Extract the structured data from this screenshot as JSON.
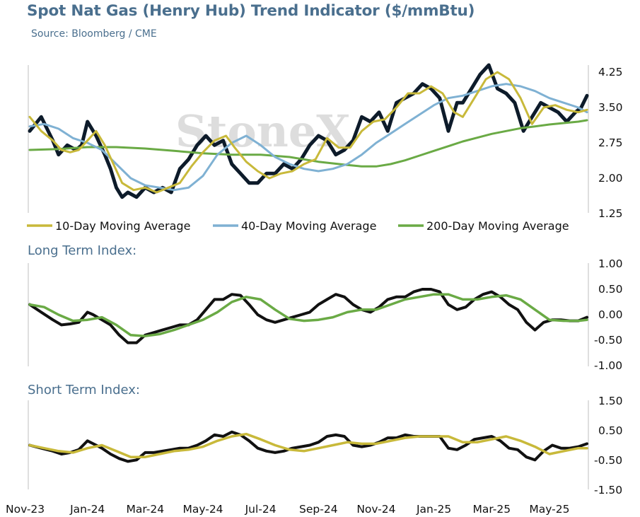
{
  "title": "Spot Nat Gas (Henry Hub) Trend Indicator ($/mmBtu)",
  "subtitle": "Source: Bloomberg / CME",
  "watermark": "StoneX",
  "colors": {
    "spot": "#0d1b2a",
    "ma10": "#c8b93a",
    "ma40": "#7fb1d3",
    "ma200": "#6aaa45",
    "index_long": "#111111",
    "index_long_avg": "#6aaa45",
    "index_short_avg": "#c8b93a",
    "axis": "#bfbfbf",
    "title": "#4a6f8e"
  },
  "chart_data": [
    {
      "type": "line",
      "title": "Spot Nat Gas (Henry Hub) Trend Indicator ($/mmBtu)",
      "ylim": [
        1.25,
        4.25
      ],
      "yticks": [
        "4.25",
        "3.50",
        "2.75",
        "2.00",
        "1.25"
      ],
      "x_labels": [
        "Nov-23",
        "Jan-24",
        "Mar-24",
        "May-24",
        "Jul-24",
        "Sep-24",
        "Nov-24",
        "Jan-25",
        "Mar-25",
        "May-25"
      ],
      "x_months": [
        0,
        2,
        4,
        6,
        8,
        10,
        12,
        14,
        16,
        18
      ],
      "x_range_months": [
        0,
        19.3
      ],
      "legend": [
        "10-Day Moving Average",
        "40-Day Moving Average",
        "200-Day Moving Average"
      ],
      "series": [
        {
          "key": "spot",
          "x": [
            0,
            0.4,
            0.8,
            1.0,
            1.3,
            1.6,
            1.8,
            2.0,
            2.3,
            2.6,
            2.8,
            3.0,
            3.2,
            3.4,
            3.7,
            4.0,
            4.3,
            4.6,
            4.9,
            5.2,
            5.5,
            5.8,
            6.1,
            6.4,
            6.7,
            7.0,
            7.3,
            7.6,
            7.9,
            8.2,
            8.5,
            8.8,
            9.1,
            9.4,
            9.7,
            10.0,
            10.3,
            10.6,
            10.9,
            11.2,
            11.5,
            11.8,
            12.1,
            12.4,
            12.7,
            13.0,
            13.3,
            13.6,
            13.9,
            14.2,
            14.5,
            14.8,
            15.0,
            15.3,
            15.6,
            15.9,
            16.2,
            16.5,
            16.8,
            17.1,
            17.4,
            17.7,
            18.0,
            18.3,
            18.6,
            18.9,
            19.1,
            19.3
          ],
          "values": [
            3.0,
            3.3,
            2.8,
            2.5,
            2.7,
            2.6,
            2.7,
            3.2,
            2.9,
            2.5,
            2.2,
            1.8,
            1.6,
            1.7,
            1.6,
            1.8,
            1.7,
            1.8,
            1.7,
            2.2,
            2.4,
            2.7,
            2.9,
            2.7,
            2.8,
            2.3,
            2.1,
            1.9,
            1.9,
            2.1,
            2.1,
            2.3,
            2.2,
            2.4,
            2.7,
            2.9,
            2.8,
            2.5,
            2.6,
            2.8,
            3.3,
            3.2,
            3.4,
            3.0,
            3.6,
            3.7,
            3.8,
            4.0,
            3.9,
            3.7,
            3.0,
            3.6,
            3.6,
            3.9,
            4.2,
            4.4,
            3.9,
            3.8,
            3.6,
            3.0,
            3.3,
            3.6,
            3.5,
            3.4,
            3.2,
            3.4,
            3.5,
            3.75
          ]
        },
        {
          "key": "ma10",
          "x": [
            0,
            0.4,
            0.8,
            1.1,
            1.4,
            1.7,
            2.0,
            2.3,
            2.6,
            2.9,
            3.2,
            3.6,
            4.0,
            4.4,
            4.8,
            5.2,
            5.6,
            6.0,
            6.4,
            6.8,
            7.1,
            7.5,
            7.9,
            8.3,
            8.7,
            9.1,
            9.5,
            9.9,
            10.3,
            10.7,
            11.1,
            11.5,
            11.9,
            12.3,
            12.7,
            13.1,
            13.5,
            13.9,
            14.3,
            14.7,
            15.0,
            15.4,
            15.8,
            16.2,
            16.6,
            17.0,
            17.4,
            17.8,
            18.2,
            18.6,
            19.0,
            19.3
          ],
          "values": [
            3.3,
            3.0,
            2.8,
            2.6,
            2.55,
            2.6,
            2.8,
            3.0,
            2.7,
            2.3,
            1.9,
            1.75,
            1.8,
            1.7,
            1.8,
            1.9,
            2.25,
            2.55,
            2.8,
            2.9,
            2.65,
            2.35,
            2.15,
            2.0,
            2.1,
            2.15,
            2.3,
            2.4,
            2.85,
            2.65,
            2.65,
            3.0,
            3.2,
            3.25,
            3.5,
            3.8,
            3.8,
            3.95,
            3.8,
            3.4,
            3.3,
            3.7,
            4.1,
            4.25,
            4.1,
            3.7,
            3.15,
            3.5,
            3.55,
            3.45,
            3.4,
            3.45
          ]
        },
        {
          "key": "ma40",
          "x": [
            0,
            0.5,
            1.0,
            1.5,
            2.0,
            2.5,
            3.0,
            3.5,
            4.0,
            4.5,
            5.0,
            5.5,
            6.0,
            6.5,
            7.0,
            7.5,
            8.0,
            8.5,
            9.0,
            9.5,
            10.0,
            10.5,
            11.0,
            11.5,
            12.0,
            12.5,
            13.0,
            13.5,
            14.0,
            14.5,
            15.0,
            15.5,
            16.0,
            16.5,
            17.0,
            17.5,
            18.0,
            18.5,
            19.0,
            19.3
          ],
          "values": [
            3.1,
            3.15,
            3.05,
            2.85,
            2.75,
            2.6,
            2.3,
            2.0,
            1.85,
            1.8,
            1.75,
            1.8,
            2.05,
            2.5,
            2.75,
            2.9,
            2.7,
            2.45,
            2.3,
            2.2,
            2.15,
            2.2,
            2.3,
            2.5,
            2.75,
            2.95,
            3.15,
            3.35,
            3.55,
            3.7,
            3.75,
            3.85,
            3.95,
            4.0,
            3.95,
            3.85,
            3.7,
            3.6,
            3.5,
            3.4
          ]
        },
        {
          "key": "ma200",
          "x": [
            0,
            1,
            2,
            3,
            4,
            5,
            6,
            7,
            8,
            9,
            10,
            11,
            11.5,
            12,
            12.5,
            13,
            13.5,
            14,
            14.5,
            15,
            15.5,
            16,
            16.5,
            17,
            17.5,
            18,
            18.5,
            19,
            19.3
          ],
          "values": [
            2.6,
            2.62,
            2.66,
            2.66,
            2.63,
            2.58,
            2.53,
            2.5,
            2.5,
            2.45,
            2.35,
            2.28,
            2.25,
            2.25,
            2.3,
            2.38,
            2.48,
            2.58,
            2.68,
            2.78,
            2.86,
            2.94,
            3.0,
            3.06,
            3.1,
            3.14,
            3.17,
            3.2,
            3.23
          ]
        }
      ]
    },
    {
      "type": "line",
      "title": "Long Term Index:",
      "ylim": [
        -1.0,
        1.0
      ],
      "yticks": [
        "1.00",
        "0.50",
        "0.00",
        "-0.50",
        "-1.00"
      ],
      "series": [
        {
          "key": "index",
          "x": [
            0,
            0.4,
            0.8,
            1.1,
            1.4,
            1.7,
            2.0,
            2.2,
            2.5,
            2.8,
            3.1,
            3.4,
            3.7,
            4.0,
            4.3,
            4.6,
            4.9,
            5.2,
            5.5,
            5.8,
            6.1,
            6.4,
            6.7,
            7.0,
            7.3,
            7.6,
            7.9,
            8.2,
            8.5,
            8.8,
            9.1,
            9.4,
            9.7,
            10.0,
            10.3,
            10.6,
            10.9,
            11.2,
            11.5,
            11.8,
            12.1,
            12.4,
            12.7,
            13.0,
            13.3,
            13.6,
            13.9,
            14.2,
            14.5,
            14.8,
            15.1,
            15.4,
            15.7,
            16.0,
            16.3,
            16.6,
            16.9,
            17.2,
            17.5,
            17.8,
            18.1,
            18.4,
            18.7,
            19.0,
            19.3
          ],
          "values": [
            0.2,
            0.05,
            -0.1,
            -0.2,
            -0.18,
            -0.15,
            0.05,
            0.0,
            -0.1,
            -0.2,
            -0.4,
            -0.55,
            -0.55,
            -0.4,
            -0.35,
            -0.3,
            -0.25,
            -0.2,
            -0.2,
            -0.1,
            0.1,
            0.3,
            0.3,
            0.4,
            0.38,
            0.2,
            0.0,
            -0.1,
            -0.15,
            -0.1,
            -0.05,
            0.0,
            0.05,
            0.2,
            0.3,
            0.4,
            0.35,
            0.2,
            0.1,
            0.05,
            0.15,
            0.3,
            0.35,
            0.35,
            0.45,
            0.5,
            0.5,
            0.45,
            0.2,
            0.1,
            0.15,
            0.3,
            0.4,
            0.45,
            0.35,
            0.2,
            0.1,
            -0.15,
            -0.3,
            -0.15,
            -0.1,
            -0.1,
            -0.12,
            -0.12,
            -0.05
          ]
        },
        {
          "key": "avg",
          "x": [
            0,
            0.5,
            1.0,
            1.5,
            2.0,
            2.5,
            3.0,
            3.5,
            4.0,
            4.5,
            5.0,
            5.5,
            6.0,
            6.5,
            7.0,
            7.5,
            8.0,
            8.5,
            9.0,
            9.5,
            10.0,
            10.5,
            11.0,
            11.5,
            12.0,
            12.5,
            13.0,
            13.5,
            14.0,
            14.5,
            15.0,
            15.5,
            16.0,
            16.5,
            17.0,
            17.5,
            18.0,
            18.5,
            19.0,
            19.3
          ],
          "values": [
            0.2,
            0.15,
            0.0,
            -0.12,
            -0.1,
            -0.05,
            -0.2,
            -0.4,
            -0.42,
            -0.38,
            -0.3,
            -0.2,
            -0.1,
            0.05,
            0.25,
            0.35,
            0.3,
            0.1,
            -0.08,
            -0.12,
            -0.1,
            -0.05,
            0.05,
            0.1,
            0.1,
            0.2,
            0.3,
            0.35,
            0.4,
            0.4,
            0.3,
            0.3,
            0.35,
            0.38,
            0.3,
            0.1,
            -0.1,
            -0.12,
            -0.12,
            -0.1
          ]
        }
      ]
    },
    {
      "type": "line",
      "title": "Short Term Index:",
      "ylim": [
        -1.5,
        1.5
      ],
      "yticks": [
        "1.50",
        "0.50",
        "-0.50",
        "-1.50"
      ],
      "series": [
        {
          "key": "index",
          "x": [
            0,
            0.4,
            0.8,
            1.1,
            1.4,
            1.7,
            2.0,
            2.2,
            2.5,
            2.8,
            3.1,
            3.4,
            3.7,
            4.0,
            4.3,
            4.6,
            4.9,
            5.2,
            5.5,
            5.8,
            6.1,
            6.4,
            6.7,
            7.0,
            7.3,
            7.6,
            7.9,
            8.2,
            8.5,
            8.8,
            9.1,
            9.4,
            9.7,
            10.0,
            10.3,
            10.6,
            10.9,
            11.2,
            11.5,
            11.8,
            12.1,
            12.4,
            12.7,
            13.0,
            13.3,
            13.6,
            13.9,
            14.2,
            14.5,
            14.8,
            15.1,
            15.4,
            15.7,
            16.0,
            16.3,
            16.6,
            16.9,
            17.2,
            17.5,
            17.8,
            18.1,
            18.4,
            18.7,
            19.0,
            19.3
          ],
          "values": [
            0.0,
            -0.1,
            -0.2,
            -0.3,
            -0.25,
            -0.15,
            0.15,
            0.05,
            -0.1,
            -0.3,
            -0.45,
            -0.55,
            -0.5,
            -0.25,
            -0.25,
            -0.2,
            -0.15,
            -0.1,
            -0.1,
            0.0,
            0.15,
            0.35,
            0.3,
            0.45,
            0.35,
            0.15,
            -0.1,
            -0.2,
            -0.25,
            -0.2,
            -0.1,
            -0.05,
            0.0,
            0.1,
            0.3,
            0.35,
            0.3,
            0.0,
            -0.05,
            0.0,
            0.1,
            0.25,
            0.25,
            0.35,
            0.3,
            0.3,
            0.3,
            0.3,
            -0.1,
            -0.15,
            0.0,
            0.2,
            0.25,
            0.3,
            0.15,
            -0.1,
            -0.15,
            -0.4,
            -0.5,
            -0.2,
            0.0,
            -0.1,
            -0.1,
            -0.05,
            0.05
          ]
        },
        {
          "key": "avg",
          "x": [
            0,
            0.5,
            1.0,
            1.5,
            2.0,
            2.5,
            3.0,
            3.5,
            4.0,
            4.5,
            5.0,
            5.5,
            6.0,
            6.5,
            7.0,
            7.5,
            8.0,
            8.5,
            9.0,
            9.5,
            10.0,
            10.5,
            11.0,
            11.5,
            12.0,
            12.5,
            13.0,
            13.5,
            14.0,
            14.5,
            15.0,
            15.5,
            16.0,
            16.5,
            17.0,
            17.5,
            18.0,
            18.5,
            19.0,
            19.3
          ],
          "values": [
            0.0,
            -0.1,
            -0.2,
            -0.25,
            -0.1,
            0.0,
            -0.2,
            -0.4,
            -0.4,
            -0.3,
            -0.2,
            -0.15,
            -0.05,
            0.15,
            0.3,
            0.38,
            0.2,
            0.0,
            -0.15,
            -0.2,
            -0.1,
            0.0,
            0.1,
            0.05,
            0.05,
            0.15,
            0.25,
            0.3,
            0.3,
            0.3,
            0.1,
            0.1,
            0.2,
            0.3,
            0.15,
            -0.05,
            -0.3,
            -0.2,
            -0.1,
            -0.1
          ]
        }
      ]
    }
  ]
}
